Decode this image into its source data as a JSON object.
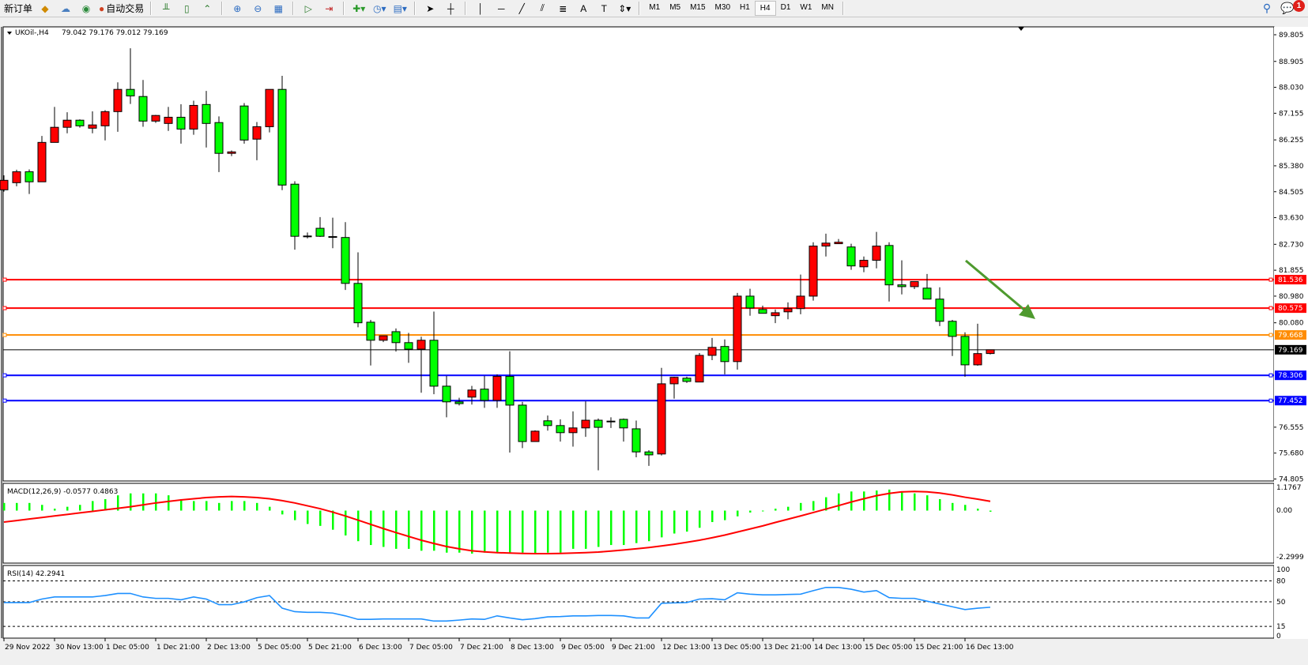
{
  "toolbar": {
    "new_order_label": "新订单",
    "auto_trade_label": "自动交易",
    "timeframes": [
      "M1",
      "M5",
      "M15",
      "M30",
      "H1",
      "H4",
      "D1",
      "W1",
      "MN"
    ],
    "active_timeframe": "H4",
    "notification_count": "1",
    "icons": [
      "new-order-icon",
      "market-watch-icon",
      "navigator-icon",
      "signals-icon",
      "auto-trading-icon",
      "bar-chart-icon",
      "candlestick-icon",
      "line-chart-icon",
      "zoom-in-icon",
      "zoom-out-icon",
      "tile-windows-icon",
      "auto-scroll-icon",
      "chart-shift-icon",
      "indicators-icon",
      "periods-icon",
      "templates-icon",
      "cursor-icon",
      "crosshair-icon",
      "vertical-line-icon",
      "horizontal-line-icon",
      "trendline-icon",
      "equidistant-channel-icon",
      "fibonacci-icon",
      "text-icon",
      "text-label-icon",
      "arrows-icon",
      "search-icon",
      "chat-icon"
    ]
  },
  "chart": {
    "symbol_label": "UKOil-,H4",
    "ohlc_label": "79.042 79.176 79.012 79.169",
    "colors": {
      "bull": "#ff0000",
      "bear": "#00ff00",
      "outline": "#000000",
      "macd_hist": "#00ff00",
      "macd_signal": "#ff0000",
      "rsi": "#1e90ff",
      "arrow": "#4e9a2e"
    },
    "price_axis": [
      "89.805",
      "88.905",
      "88.030",
      "87.155",
      "86.255",
      "85.380",
      "84.505",
      "83.630",
      "82.730",
      "81.855",
      "80.980",
      "80.080",
      "76.555",
      "75.680",
      "74.805"
    ],
    "time_axis": [
      "29 Nov 2022",
      "30 Nov 13:00",
      "1 Dec 05:00",
      "1 Dec 21:00",
      "2 Dec 13:00",
      "5 Dec 05:00",
      "5 Dec 21:00",
      "6 Dec 13:00",
      "7 Dec 05:00",
      "7 Dec 21:00",
      "8 Dec 13:00",
      "9 Dec 05:00",
      "9 Dec 21:00",
      "12 Dec 13:00",
      "13 Dec 05:00",
      "13 Dec 21:00",
      "14 Dec 13:00",
      "15 Dec 05:00",
      "15 Dec 21:00",
      "16 Dec 13:00"
    ],
    "levels": [
      {
        "price": "81.536",
        "color": "#ff0000"
      },
      {
        "price": "80.575",
        "color": "#ff0000"
      },
      {
        "price": "79.668",
        "color": "#ff8c00"
      },
      {
        "price": "78.306",
        "color": "#0000ff"
      },
      {
        "price": "77.452",
        "color": "#0000ff"
      }
    ],
    "bid": {
      "price": "79.169",
      "color": "#000000"
    },
    "annotation": "downward green arrow"
  },
  "chart_data": {
    "type": "candlestick",
    "ohlc": [
      [
        84.57,
        85.06,
        84.51,
        84.89
      ],
      [
        84.81,
        85.25,
        84.69,
        85.18
      ],
      [
        85.18,
        85.26,
        84.43,
        84.84
      ],
      [
        84.84,
        86.39,
        84.84,
        86.17
      ],
      [
        86.17,
        87.37,
        86.17,
        86.68
      ],
      [
        86.68,
        87.19,
        86.48,
        86.92
      ],
      [
        86.92,
        86.95,
        86.67,
        86.73
      ],
      [
        86.65,
        87.22,
        86.48,
        86.76
      ],
      [
        86.73,
        87.26,
        86.24,
        87.21
      ],
      [
        87.21,
        88.2,
        86.53,
        87.96
      ],
      [
        87.96,
        89.35,
        87.47,
        87.74
      ],
      [
        87.72,
        88.28,
        86.7,
        86.89
      ],
      [
        86.89,
        87.1,
        86.83,
        87.08
      ],
      [
        86.81,
        87.37,
        86.56,
        87.02
      ],
      [
        87.02,
        87.46,
        86.13,
        86.62
      ],
      [
        86.62,
        87.58,
        86.43,
        87.42
      ],
      [
        87.45,
        87.91,
        86.0,
        86.81
      ],
      [
        86.84,
        87.05,
        85.17,
        85.8
      ],
      [
        85.8,
        85.9,
        85.71,
        85.85
      ],
      [
        87.4,
        87.5,
        86.13,
        86.25
      ],
      [
        86.28,
        86.86,
        85.57,
        86.7
      ],
      [
        86.7,
        87.96,
        86.51,
        87.96
      ],
      [
        87.96,
        88.42,
        84.56,
        84.73
      ],
      [
        84.76,
        84.86,
        82.55,
        83.0
      ],
      [
        82.99,
        83.13,
        82.93,
        83.01
      ],
      [
        83.27,
        83.65,
        82.98,
        83.0
      ],
      [
        82.97,
        83.63,
        82.6,
        82.99
      ],
      [
        82.96,
        83.48,
        81.19,
        81.41
      ],
      [
        81.41,
        82.46,
        79.93,
        80.08
      ],
      [
        80.1,
        80.18,
        78.64,
        79.49
      ],
      [
        79.49,
        79.64,
        79.43,
        79.64
      ],
      [
        79.78,
        79.89,
        79.11,
        79.41
      ],
      [
        79.41,
        79.74,
        78.73,
        79.19
      ],
      [
        79.19,
        79.61,
        77.72,
        79.49
      ],
      [
        79.49,
        80.46,
        77.67,
        77.94
      ],
      [
        77.94,
        78.29,
        76.89,
        77.41
      ],
      [
        77.41,
        77.55,
        77.29,
        77.35
      ],
      [
        77.57,
        77.95,
        77.32,
        77.81
      ],
      [
        77.84,
        78.29,
        77.21,
        77.46
      ],
      [
        77.46,
        78.34,
        77.21,
        78.27
      ],
      [
        78.27,
        79.12,
        75.7,
        77.3
      ],
      [
        77.3,
        77.41,
        75.85,
        76.07
      ],
      [
        76.07,
        76.45,
        76.07,
        76.42
      ],
      [
        76.77,
        76.95,
        76.44,
        76.61
      ],
      [
        76.61,
        76.82,
        76.07,
        76.37
      ],
      [
        76.37,
        77.09,
        75.9,
        76.53
      ],
      [
        76.53,
        77.43,
        76.23,
        76.79
      ],
      [
        76.79,
        76.85,
        75.1,
        76.55
      ],
      [
        76.74,
        76.89,
        76.53,
        76.76
      ],
      [
        76.82,
        76.85,
        76.07,
        76.53
      ],
      [
        76.5,
        76.78,
        75.54,
        75.72
      ],
      [
        75.72,
        75.78,
        75.25,
        75.62
      ],
      [
        75.65,
        78.56,
        75.6,
        78.02
      ],
      [
        78.02,
        78.26,
        77.52,
        78.24
      ],
      [
        78.21,
        78.26,
        78.05,
        78.1
      ],
      [
        78.08,
        79.06,
        78.08,
        78.98
      ],
      [
        78.98,
        79.57,
        78.82,
        79.25
      ],
      [
        79.28,
        79.52,
        78.34,
        78.77
      ],
      [
        78.77,
        81.09,
        78.5,
        80.98
      ],
      [
        80.98,
        81.23,
        80.32,
        80.58
      ],
      [
        80.53,
        80.66,
        80.4,
        80.4
      ],
      [
        80.32,
        80.53,
        80.07,
        80.42
      ],
      [
        80.45,
        80.77,
        80.2,
        80.56
      ],
      [
        80.56,
        81.71,
        80.37,
        80.98
      ],
      [
        80.98,
        82.8,
        80.83,
        82.67
      ],
      [
        82.67,
        83.09,
        82.32,
        82.77
      ],
      [
        82.75,
        82.91,
        82.75,
        82.8
      ],
      [
        82.64,
        82.75,
        81.87,
        82.0
      ],
      [
        81.97,
        82.32,
        81.79,
        82.19
      ],
      [
        82.19,
        83.15,
        81.92,
        82.67
      ],
      [
        82.69,
        82.8,
        80.8,
        81.36
      ],
      [
        81.36,
        82.19,
        81.04,
        81.3
      ],
      [
        81.3,
        81.47,
        81.22,
        81.47
      ],
      [
        81.25,
        81.73,
        80.88,
        80.88
      ],
      [
        80.88,
        81.28,
        79.97,
        80.13
      ],
      [
        80.13,
        80.18,
        78.96,
        79.62
      ],
      [
        79.62,
        79.76,
        78.26,
        78.66
      ],
      [
        78.66,
        80.05,
        78.63,
        79.04
      ],
      [
        79.042,
        79.176,
        79.012,
        79.169
      ]
    ],
    "ylim": [
      74.805,
      89.805
    ],
    "macd": {
      "label": "MACD(12,26,9) -0.0577 0.4863",
      "ylim": [
        -2.2999,
        1.1767
      ],
      "axis": [
        "1.1767",
        "0.00",
        "-2.2999"
      ],
      "main": [
        0.4,
        0.4,
        0.4,
        0.3,
        0.1,
        0.2,
        0.3,
        0.5,
        0.6,
        0.8,
        0.9,
        0.9,
        0.9,
        0.8,
        0.6,
        0.5,
        0.5,
        0.4,
        0.5,
        0.5,
        0.4,
        0.2,
        -0.2,
        -0.5,
        -0.7,
        -0.8,
        -1.0,
        -1.3,
        -1.6,
        -1.8,
        -1.9,
        -2.0,
        -2.0,
        -2.1,
        -2.1,
        -2.2,
        -2.2,
        -2.25,
        -2.2,
        -2.2,
        -2.25,
        -2.2,
        -2.25,
        -2.2,
        -2.2,
        -2.0,
        -2.0,
        -1.9,
        -1.8,
        -1.8,
        -1.7,
        -1.6,
        -1.4,
        -1.2,
        -1.1,
        -0.9,
        -0.6,
        -0.5,
        -0.3,
        -0.1,
        0.0,
        0.1,
        0.2,
        0.4,
        0.5,
        0.7,
        0.9,
        1.0,
        1.0,
        1.05,
        1.1,
        1.0,
        0.9,
        0.8,
        0.6,
        0.4,
        0.3,
        0.1,
        -0.0577
      ],
      "signal": [
        -0.6,
        -0.52,
        -0.44,
        -0.36,
        -0.28,
        -0.2,
        -0.12,
        -0.04,
        0.04,
        0.12,
        0.2,
        0.3,
        0.4,
        0.48,
        0.56,
        0.62,
        0.68,
        0.72,
        0.74,
        0.72,
        0.68,
        0.62,
        0.52,
        0.4,
        0.25,
        0.1,
        -0.08,
        -0.28,
        -0.5,
        -0.72,
        -0.94,
        -1.15,
        -1.35,
        -1.55,
        -1.72,
        -1.88,
        -2.0,
        -2.1,
        -2.16,
        -2.2,
        -2.22,
        -2.24,
        -2.25,
        -2.25,
        -2.24,
        -2.22,
        -2.2,
        -2.17,
        -2.12,
        -2.06,
        -2.0,
        -1.93,
        -1.85,
        -1.76,
        -1.66,
        -1.55,
        -1.42,
        -1.28,
        -1.12,
        -0.96,
        -0.8,
        -0.62,
        -0.45,
        -0.28,
        -0.1,
        0.08,
        0.26,
        0.45,
        0.62,
        0.78,
        0.9,
        0.98,
        1.0,
        0.98,
        0.92,
        0.82,
        0.7,
        0.6,
        0.4863
      ]
    },
    "rsi": {
      "label": "RSI(14) 42.2941",
      "ylim": [
        0,
        100
      ],
      "axis": [
        "100",
        "80",
        "50",
        "15",
        "0"
      ],
      "levels": [
        80,
        50,
        15
      ],
      "values": [
        49,
        49,
        49,
        54,
        57,
        57,
        57,
        57,
        59,
        62,
        62,
        57,
        55,
        55,
        53,
        57,
        54,
        46,
        46,
        50,
        56,
        59,
        41,
        36,
        35,
        35,
        34,
        30,
        25,
        25,
        25.6,
        25.6,
        25.6,
        25.6,
        22.6,
        22.6,
        24,
        25.6,
        25,
        30,
        27,
        24.5,
        26,
        28.6,
        29,
        30,
        30,
        30.5,
        30.5,
        30,
        27,
        27,
        48,
        48.5,
        49,
        54,
        54.5,
        53,
        63,
        61,
        60,
        60,
        60.5,
        61,
        66,
        70.6,
        70.6,
        68,
        64,
        66,
        56,
        55,
        55,
        51,
        47,
        43,
        39,
        41,
        42.2941
      ]
    }
  }
}
